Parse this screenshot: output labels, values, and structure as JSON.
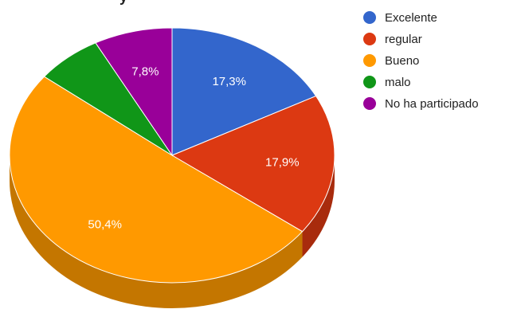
{
  "chart_data": {
    "type": "pie",
    "title_partial": "y",
    "series": [
      {
        "name": "Excelente",
        "value": 17.3,
        "label": "17,3%",
        "color": "#3366cc",
        "side_color": "#284f9e"
      },
      {
        "name": "regular",
        "value": 17.9,
        "label": "17,9%",
        "color": "#dc3912",
        "side_color": "#a82b0d"
      },
      {
        "name": "Bueno",
        "value": 50.4,
        "label": "50,4%",
        "color": "#ff9900",
        "side_color": "#c47600"
      },
      {
        "name": "malo",
        "value": 6.6,
        "label": "",
        "color": "#109618",
        "side_color": "#0c7312"
      },
      {
        "name": "No ha participado",
        "value": 7.8,
        "label": "7,8%",
        "color": "#990099",
        "side_color": "#750075"
      }
    ],
    "legend_position": "right",
    "is_3d": true
  }
}
